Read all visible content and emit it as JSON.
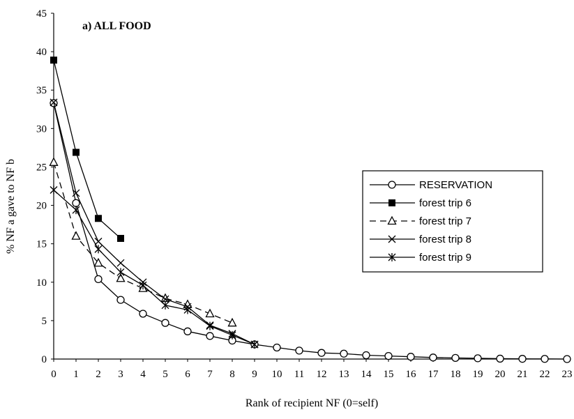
{
  "chart_data": {
    "type": "line",
    "title": "a) ALL FOOD",
    "xlabel": "Rank of recipient NF (0=self)",
    "ylabel": "% NF a gave to NF b",
    "xlim": [
      0,
      23
    ],
    "ylim": [
      0,
      45
    ],
    "x_ticks": [
      "0",
      "1",
      "2",
      "3",
      "4",
      "5",
      "6",
      "7",
      "8",
      "9",
      "10",
      "11",
      "12",
      "13",
      "14",
      "15",
      "16",
      "17",
      "18",
      "19",
      "20",
      "21",
      "22",
      "23"
    ],
    "y_ticks": [
      "0",
      "5",
      "10",
      "15",
      "20",
      "25",
      "30",
      "35",
      "40",
      "45"
    ],
    "grid": false,
    "legend_position": "right",
    "series": [
      {
        "name": "RESERVATION",
        "marker": "open-circle",
        "line": "solid",
        "x": [
          0,
          1,
          2,
          3,
          4,
          5,
          6,
          7,
          8,
          9,
          10,
          11,
          12,
          13,
          14,
          15,
          16,
          17,
          18,
          19,
          20,
          21,
          22,
          23
        ],
        "y": [
          33.3,
          20.3,
          10.4,
          7.7,
          5.9,
          4.7,
          3.6,
          3.0,
          2.4,
          1.9,
          1.5,
          1.1,
          0.8,
          0.7,
          0.5,
          0.4,
          0.3,
          0.2,
          0.15,
          0.1,
          0.05,
          0.03,
          0.02,
          0.0
        ]
      },
      {
        "name": "forest trip 6",
        "marker": "filled-square",
        "line": "solid",
        "x": [
          0,
          1,
          2,
          3
        ],
        "y": [
          38.9,
          26.9,
          18.3,
          15.7
        ]
      },
      {
        "name": "forest trip 7",
        "marker": "open-triangle",
        "line": "dashed",
        "x": [
          0,
          1,
          2,
          3,
          4,
          5,
          6,
          7,
          8
        ],
        "y": [
          25.6,
          16.0,
          12.5,
          10.5,
          9.2,
          7.9,
          7.1,
          5.9,
          4.7
        ]
      },
      {
        "name": "forest trip 8",
        "marker": "x",
        "line": "solid",
        "x": [
          0,
          1,
          2,
          3,
          4,
          5,
          6,
          7,
          8,
          9
        ],
        "y": [
          33.4,
          21.6,
          15.3,
          12.5,
          10.0,
          7.8,
          6.8,
          4.4,
          3.3,
          1.9
        ]
      },
      {
        "name": "forest trip 9",
        "marker": "asterisk",
        "line": "solid",
        "x": [
          0,
          1,
          2,
          3,
          4,
          5,
          6,
          7,
          8,
          9
        ],
        "y": [
          22.0,
          19.4,
          14.3,
          11.3,
          9.6,
          7.0,
          6.4,
          4.3,
          3.1,
          1.9
        ]
      }
    ]
  }
}
